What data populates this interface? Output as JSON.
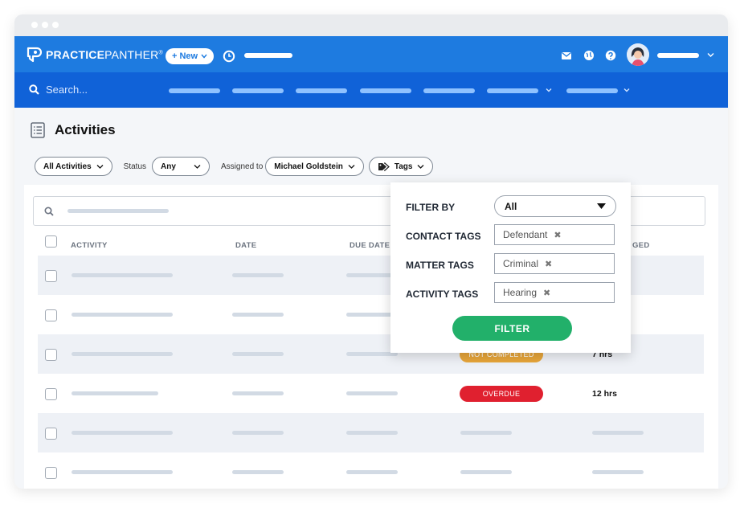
{
  "app": {
    "logo_bold": "PRACTICE",
    "logo_thin": "PANTHER",
    "logo_mark": "®",
    "new_button": "+ New"
  },
  "nav": {
    "search_placeholder": "Search..."
  },
  "page": {
    "title": "Activities"
  },
  "filters": {
    "all_activities": "All Activities",
    "status_label": "Status",
    "status_value": "Any",
    "assigned_label": "Assigned to",
    "assigned_value": "Michael Goldstein",
    "tags_label": "Tags"
  },
  "table": {
    "headers": [
      "ACTIVITY",
      "DATE",
      "DUE DATE",
      "GED"
    ],
    "rows": [
      {
        "status": "",
        "hours": ""
      },
      {
        "status": "",
        "hours": ""
      },
      {
        "status": "NOT COMPLETED",
        "hours": "7 hrs"
      },
      {
        "status": "OVERDUE",
        "hours": "12 hrs"
      },
      {
        "status": "",
        "hours": ""
      },
      {
        "status": "",
        "hours": ""
      }
    ]
  },
  "tag_filter": {
    "filter_by_label": "FILTER BY",
    "filter_by_value": "All",
    "contact_tags_label": "CONTACT TAGS",
    "contact_tag": "Defendant",
    "matter_tags_label": "MATTER TAGS",
    "matter_tag": "Criminal",
    "activity_tags_label": "ACTIVITY TAGS",
    "activity_tag": "Hearing",
    "remove_glyph": "✖",
    "filter_button": "FILTER"
  },
  "colors": {
    "topbar": "#1e7be0",
    "navbar": "#1062d8",
    "not_completed": "#e8a63a",
    "overdue": "#e0202f",
    "filter_button": "#22b06a"
  }
}
